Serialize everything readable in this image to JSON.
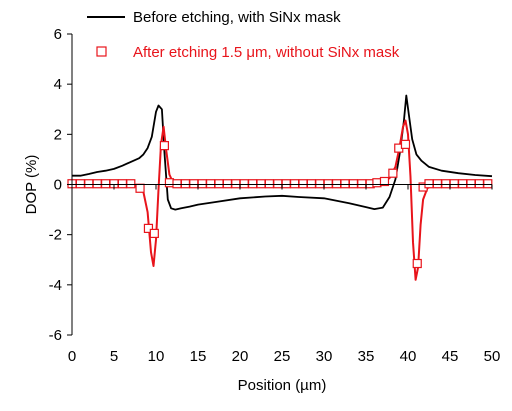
{
  "chart_data": {
    "type": "line",
    "xlabel": "Position (µm)",
    "ylabel": "DOP (%)",
    "xlim": [
      0,
      50
    ],
    "ylim": [
      -6,
      6
    ],
    "xticks": [
      0,
      5,
      10,
      15,
      20,
      25,
      30,
      35,
      40,
      45,
      50
    ],
    "yticks": [
      -6,
      -4,
      -2,
      0,
      2,
      4,
      6
    ],
    "grid": false,
    "legend_position": "top-right",
    "series": [
      {
        "name": "Before etching, with SiNx mask",
        "color": "#000000",
        "marker": "none",
        "x": [
          0,
          1,
          2,
          3,
          4,
          5,
          6,
          7,
          8,
          8.5,
          9,
          9.5,
          10,
          10.3,
          10.7,
          11,
          11.4,
          11.8,
          12.3,
          13,
          14,
          15,
          17,
          20,
          23,
          25,
          27,
          30,
          33,
          35,
          36,
          37,
          37.8,
          38.5,
          39,
          39.5,
          39.8,
          40.1,
          40.5,
          41,
          41.6,
          42.5,
          44,
          46,
          48,
          50
        ],
        "y": [
          0.35,
          0.35,
          0.42,
          0.5,
          0.55,
          0.62,
          0.75,
          0.9,
          1.05,
          1.2,
          1.45,
          1.9,
          2.9,
          3.15,
          3.0,
          1.3,
          -0.6,
          -0.95,
          -1.0,
          -0.95,
          -0.88,
          -0.8,
          -0.7,
          -0.55,
          -0.48,
          -0.45,
          -0.5,
          -0.55,
          -0.75,
          -0.9,
          -0.98,
          -0.92,
          -0.5,
          0.2,
          1.2,
          2.5,
          3.55,
          2.8,
          1.8,
          1.2,
          0.95,
          0.7,
          0.55,
          0.45,
          0.38,
          0.33
        ]
      },
      {
        "name": "After etching 1.5 μm, without SiNx mask",
        "color": "#e8141b",
        "marker": "square",
        "x": [
          0,
          1,
          2,
          3,
          4,
          5,
          6,
          7,
          8,
          8.5,
          9,
          9.4,
          9.7,
          10,
          10.3,
          10.6,
          10.9,
          11.2,
          11.6,
          12,
          13,
          15,
          20,
          25,
          30,
          35,
          36,
          37,
          37.8,
          38.5,
          39,
          39.4,
          39.7,
          40,
          40.3,
          40.6,
          40.9,
          41.2,
          41.5,
          41.8,
          42.3,
          43,
          45,
          50
        ],
        "y": [
          0,
          0,
          0,
          0,
          0,
          0,
          0,
          -0.02,
          -0.1,
          -0.3,
          -1.1,
          -2.7,
          -3.25,
          -2.2,
          -0.2,
          1.6,
          2.3,
          1.4,
          0.4,
          0.1,
          0.02,
          0,
          0,
          0,
          0,
          0,
          0.02,
          0.08,
          0.25,
          0.7,
          1.5,
          2.3,
          2.55,
          2.0,
          0.3,
          -2.3,
          -3.8,
          -3.3,
          -1.6,
          -0.6,
          -0.15,
          -0.02,
          0,
          0
        ],
        "marker_points": [
          [
            0,
            0.03
          ],
          [
            1,
            0.03
          ],
          [
            2,
            0.03
          ],
          [
            3,
            0.03
          ],
          [
            4,
            0.03
          ],
          [
            5,
            0.03
          ],
          [
            6,
            0.03
          ],
          [
            7,
            0.03
          ],
          [
            8.1,
            -0.15
          ],
          [
            9.1,
            -1.75
          ],
          [
            9.8,
            -1.95
          ],
          [
            11,
            1.55
          ],
          [
            11.6,
            0.07
          ],
          [
            12.5,
            0.03
          ],
          [
            13.5,
            0.03
          ],
          [
            14.5,
            0.03
          ],
          [
            15.5,
            0.03
          ],
          [
            16.5,
            0.03
          ],
          [
            17.5,
            0.03
          ],
          [
            18.5,
            0.03
          ],
          [
            19.5,
            0.03
          ],
          [
            20.5,
            0.03
          ],
          [
            21.5,
            0.03
          ],
          [
            22.5,
            0.03
          ],
          [
            23.5,
            0.03
          ],
          [
            24.5,
            0.03
          ],
          [
            25.5,
            0.03
          ],
          [
            26.5,
            0.03
          ],
          [
            27.5,
            0.03
          ],
          [
            28.5,
            0.03
          ],
          [
            29.5,
            0.03
          ],
          [
            30.5,
            0.03
          ],
          [
            31.5,
            0.03
          ],
          [
            32.5,
            0.03
          ],
          [
            33.5,
            0.03
          ],
          [
            34.5,
            0.03
          ],
          [
            35.5,
            0.03
          ],
          [
            36.3,
            0.07
          ],
          [
            37.2,
            0.12
          ],
          [
            38.2,
            0.45
          ],
          [
            38.9,
            1.45
          ],
          [
            39.7,
            1.6
          ],
          [
            41.1,
            -3.15
          ],
          [
            41.8,
            -0.1
          ],
          [
            42.5,
            0.03
          ],
          [
            43.5,
            0.03
          ],
          [
            44.5,
            0.03
          ],
          [
            45.5,
            0.03
          ],
          [
            46.5,
            0.03
          ],
          [
            47.5,
            0.03
          ],
          [
            48.5,
            0.03
          ],
          [
            49.5,
            0.03
          ]
        ]
      }
    ]
  }
}
